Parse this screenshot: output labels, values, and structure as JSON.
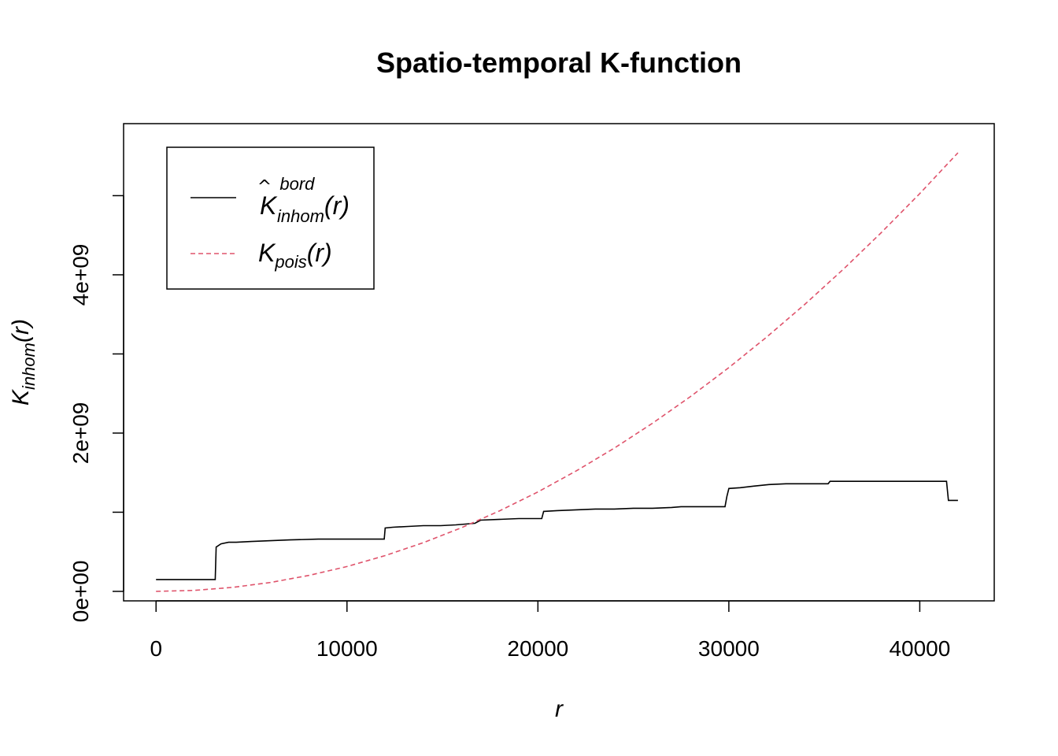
{
  "chart_data": {
    "type": "line",
    "title": "Spatio-temporal K-function",
    "xlabel": "r",
    "ylabel": {
      "base": "K",
      "sub": "inhom",
      "arg": "(r)"
    },
    "xlim": [
      -1700,
      43900
    ],
    "ylim": [
      -120000000,
      5910000000
    ],
    "x_ticks": [
      0,
      10000,
      20000,
      30000,
      40000
    ],
    "x_tick_labels": [
      "0",
      "10000",
      "20000",
      "30000",
      "40000"
    ],
    "y_ticks": [
      0,
      1000000000,
      2000000000,
      3000000000,
      4000000000,
      5000000000
    ],
    "y_tick_labels": [
      "0e+00",
      "",
      "2e+09",
      "",
      "4e+09",
      ""
    ],
    "grid": false,
    "legend_position": "top-left",
    "series": [
      {
        "name": {
          "base": "K",
          "hat": true,
          "sup": "bord",
          "sub": "inhom",
          "arg": "(r)"
        },
        "color": "#000000",
        "style": "solid",
        "x": [
          0,
          3100,
          3150,
          3400,
          3800,
          4200,
          5000,
          6000,
          7000,
          8500,
          9500,
          11000,
          11950,
          12000,
          12400,
          13200,
          14000,
          14900,
          15700,
          16700,
          17000,
          19000,
          20200,
          20300,
          21000,
          22000,
          23000,
          24000,
          25000,
          26000,
          27000,
          27500,
          28500,
          29800,
          29900,
          30000,
          30600,
          31300,
          32100,
          33000,
          34000,
          35200,
          35300,
          36000,
          37000,
          38000,
          40000,
          41400,
          41500,
          42000
        ],
        "y": [
          150000000,
          150000000,
          560000000,
          600000000,
          620000000,
          620000000,
          630000000,
          640000000,
          650000000,
          660000000,
          660000000,
          660000000,
          660000000,
          800000000,
          810000000,
          820000000,
          830000000,
          830000000,
          840000000,
          860000000,
          900000000,
          920000000,
          920000000,
          1010000000,
          1020000000,
          1030000000,
          1040000000,
          1040000000,
          1050000000,
          1050000000,
          1060000000,
          1070000000,
          1070000000,
          1070000000,
          1200000000,
          1300000000,
          1310000000,
          1330000000,
          1350000000,
          1360000000,
          1360000000,
          1360000000,
          1390000000,
          1390000000,
          1390000000,
          1390000000,
          1390000000,
          1390000000,
          1150000000,
          1150000000
        ]
      },
      {
        "name": {
          "base": "K",
          "sub": "pois",
          "arg": "(r)"
        },
        "color": "#DF536B",
        "style": "dashed",
        "x": [
          0,
          2000,
          4000,
          6000,
          8000,
          10000,
          12000,
          14000,
          16000,
          18000,
          20000,
          22000,
          24000,
          26000,
          28000,
          30000,
          32000,
          34000,
          36000,
          38000,
          40000,
          42000
        ],
        "y": [
          0,
          12600000,
          50300000,
          113100000,
          201100000,
          314200000,
          452400000,
          615800000,
          804200000,
          1017900000,
          1256600000,
          1520500000,
          1809600000,
          2123700000,
          2463000000,
          2827400000,
          3217000000,
          3631700000,
          4071500000,
          4536500000,
          5026500000,
          5541800000
        ]
      }
    ]
  }
}
